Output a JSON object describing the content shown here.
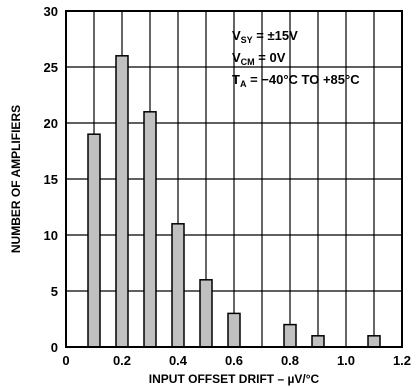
{
  "chart_data": {
    "type": "bar",
    "title": "",
    "xlabel": "INPUT OFFSET DRIFT – µV/°C",
    "ylabel": "NUMBER OF AMPLIFIERS",
    "xlim": [
      0,
      1.2
    ],
    "ylim": [
      0,
      30
    ],
    "x_ticks": [
      "0",
      "0.2",
      "0.4",
      "0.6",
      "0.8",
      "1.0",
      "1.2"
    ],
    "y_ticks": [
      "0",
      "5",
      "10",
      "15",
      "20",
      "25",
      "30"
    ],
    "grid": true,
    "bar_color": "#c0c0c0",
    "x": [
      0.1,
      0.2,
      0.3,
      0.4,
      0.5,
      0.6,
      0.8,
      0.9,
      1.1
    ],
    "values": [
      19,
      26,
      21,
      11,
      6,
      3,
      2,
      1,
      1
    ],
    "annotations": [
      {
        "main": "V",
        "sub": "SY",
        "rest": " = ±15V"
      },
      {
        "main": "V",
        "sub": "CM",
        "rest": " = 0V"
      },
      {
        "main": "T",
        "sub": "A",
        "rest": " = −40°C TO +85°C"
      }
    ]
  }
}
